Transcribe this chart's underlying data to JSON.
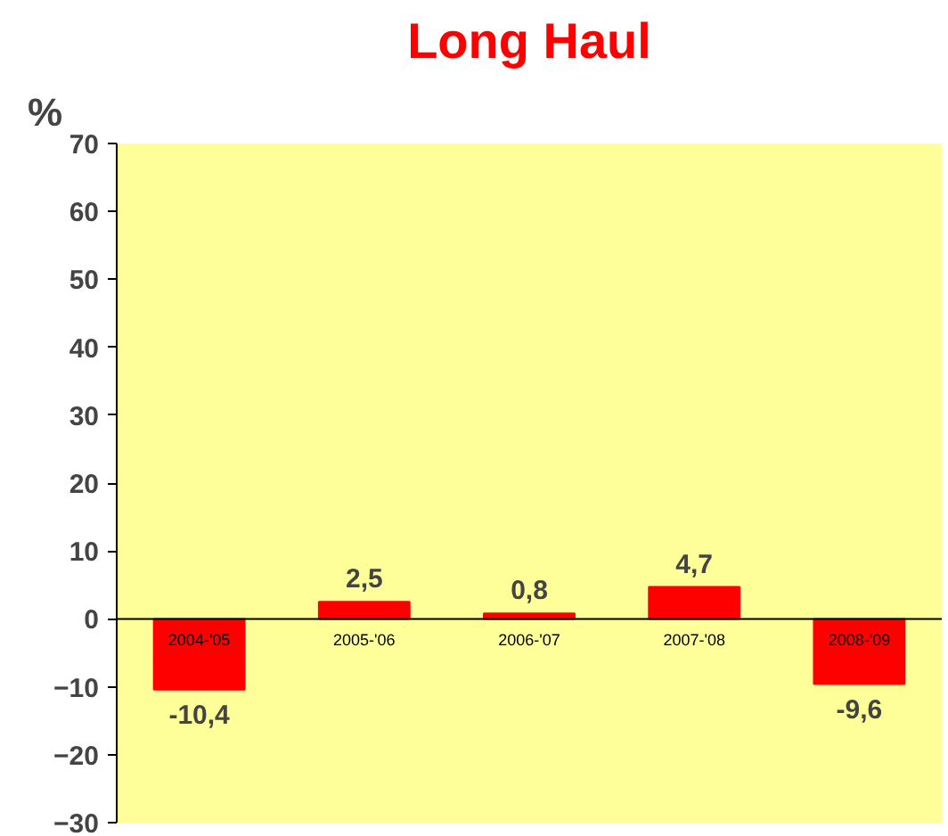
{
  "chart_data": {
    "type": "bar",
    "title": "Long Haul",
    "ylabel": "%",
    "categories": [
      "2004-'05",
      "2005-'06",
      "2006-'07",
      "2007-'08",
      "2008-'09"
    ],
    "values": [
      -10.4,
      2.5,
      0.8,
      4.7,
      -9.6
    ],
    "value_labels": [
      "-10,4",
      "2,5",
      "0,8",
      "4,7",
      "-9,6"
    ],
    "color": "#ff0000",
    "ylim": [
      -30,
      70
    ],
    "yticks": [
      -30,
      -20,
      -10,
      0,
      10,
      20,
      30,
      40,
      50,
      60,
      70
    ],
    "grid": false
  }
}
